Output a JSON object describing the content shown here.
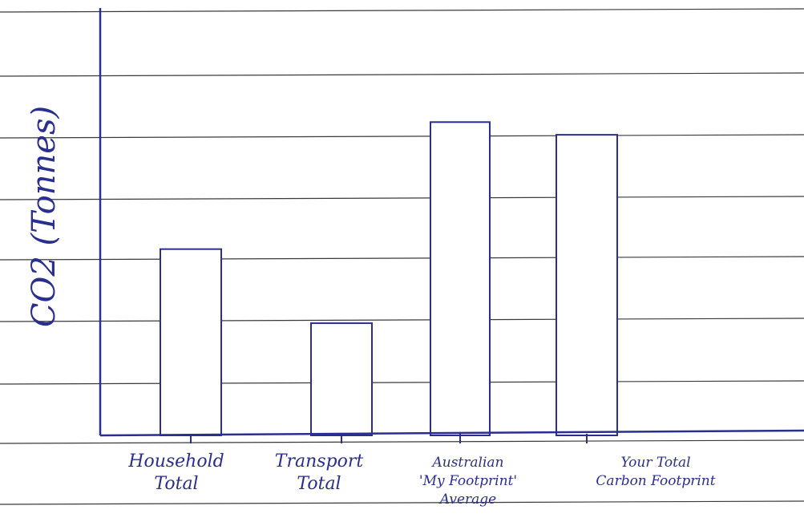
{
  "chart_data": {
    "type": "bar",
    "title": "",
    "xlabel": "",
    "ylabel": "CO2 (Tonnes)",
    "categories": [
      "Household Total",
      "Transport Total",
      "Australian 'My Footprint' Average",
      "Your Total Carbon Footprint"
    ],
    "category_lines": [
      [
        "Household",
        "Total"
      ],
      [
        "Transport",
        "Total"
      ],
      [
        "Australian",
        "'My Footprint'",
        "Average"
      ],
      [
        "Your Total",
        "Carbon Footprint"
      ]
    ],
    "values": [
      4.4,
      2.65,
      7.4,
      7.1
    ],
    "ylim": [
      0,
      10
    ],
    "grid": true,
    "legend": "none",
    "colors": {
      "ink": "#2a2f8f",
      "ruled_line": "#3a3a3a",
      "paper": "#ffffff",
      "bar_fill": "#ffffff"
    }
  }
}
